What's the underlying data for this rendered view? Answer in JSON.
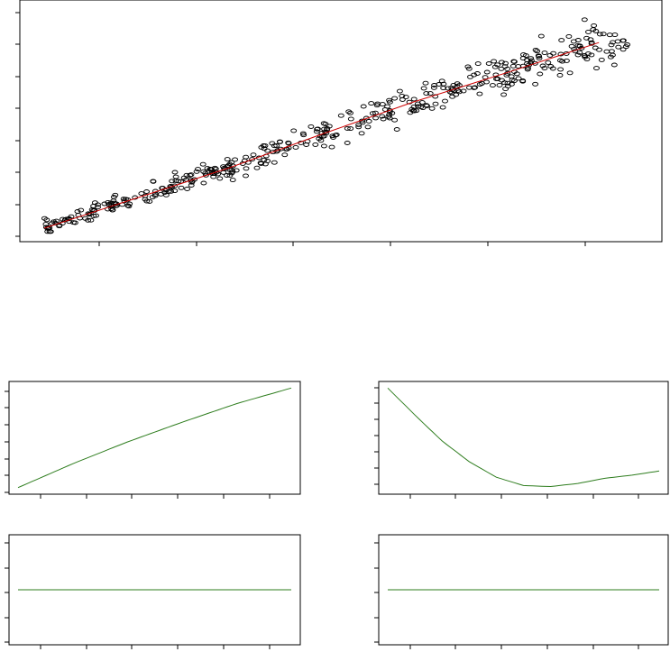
{
  "chart_data": [
    {
      "type": "scatter",
      "title": "",
      "xlabel": "",
      "ylabel": "",
      "x_range": [
        0,
        316
      ],
      "y_range": [
        0,
        200
      ],
      "n_points": 450,
      "noise_sd": 9,
      "trend": {
        "x": [
          0,
          50,
          100,
          150,
          200,
          250,
          300
        ],
        "y": [
          4,
          31,
          58,
          88,
          117,
          143,
          170
        ]
      },
      "colors": {
        "points": "#000000",
        "trend": "#cc0000"
      }
    },
    {
      "type": "line",
      "title": "",
      "x_range": [
        0,
        1
      ],
      "y_range": [
        0,
        1
      ],
      "series": [
        {
          "x": [
            0,
            0.2,
            0.4,
            0.6,
            0.8,
            1
          ],
          "y": [
            0.02,
            0.25,
            0.46,
            0.65,
            0.83,
            0.98
          ]
        }
      ],
      "color": "#2e7d1e"
    },
    {
      "type": "line",
      "title": "",
      "x_range": [
        0,
        1
      ],
      "y_range": [
        0,
        1
      ],
      "series": [
        {
          "x": [
            0,
            0.1,
            0.2,
            0.3,
            0.4,
            0.5,
            0.6,
            0.7,
            0.8,
            0.9,
            1
          ],
          "y": [
            0.98,
            0.72,
            0.47,
            0.27,
            0.12,
            0.04,
            0.03,
            0.06,
            0.11,
            0.14,
            0.18
          ]
        }
      ],
      "color": "#2e7d1e"
    },
    {
      "type": "line",
      "title": "",
      "x_range": [
        0,
        1
      ],
      "y_range": [
        0,
        1
      ],
      "series": [
        {
          "x": [
            0,
            1
          ],
          "y": [
            0.5,
            0.5
          ]
        }
      ],
      "color": "#2e7d1e"
    },
    {
      "type": "line",
      "title": "",
      "x_range": [
        0,
        1
      ],
      "y_range": [
        0,
        1
      ],
      "series": [
        {
          "x": [
            0,
            1
          ],
          "y": [
            0.5,
            0.5
          ]
        }
      ],
      "color": "#2e7d1e"
    }
  ]
}
